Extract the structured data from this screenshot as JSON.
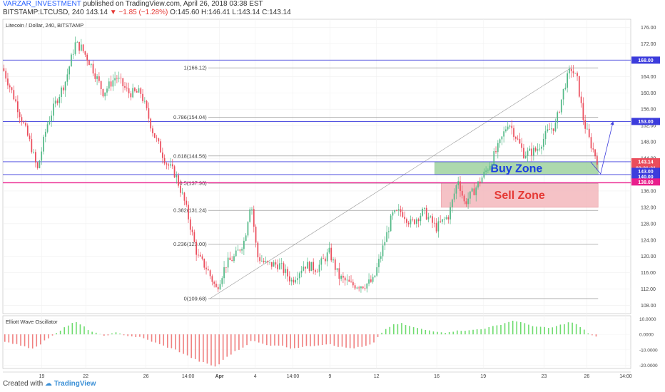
{
  "header": {
    "author": "VARZAR_INVESTMENT",
    "published_text": "published on TradingView.com, April 26, 2018 03:38 EST",
    "symbol_line": "BITSTAMP:LTCUSD, 240",
    "last": "143.14",
    "change": "−1.85 (−1.28%)",
    "o": "O:145.60",
    "h": "H:146.41",
    "l": "L:143.14",
    "c": "C:143.14"
  },
  "pane_title": "Litecoin / Dollar, 240, BITSTAMP",
  "osc_title": "Elliott Wave Oscillator",
  "footer": {
    "created_with": "Created with",
    "brand": "TradingView"
  },
  "colors": {
    "up": "#53b987",
    "down": "#eb4d5c",
    "hline": "#3c3cdc",
    "magenta": "#e91e8c",
    "buy": "#80c080",
    "sell": "#f0a0a6",
    "fib": "#888888"
  },
  "chart_data": {
    "type": "candlestick",
    "ylim": [
      106,
      178
    ],
    "y_ticks": [
      "176.00",
      "172.00",
      "168.00",
      "164.00",
      "160.00",
      "156.00",
      "152.00",
      "148.00",
      "144.00",
      "140.00",
      "136.00",
      "132.00",
      "128.00",
      "124.00",
      "120.00",
      "116.00",
      "112.00",
      "108.00"
    ],
    "x_ticks": [
      "19",
      "22",
      "26",
      "14:00",
      "Apr",
      "4",
      "14:00",
      "9",
      "12",
      "16",
      "19",
      "23",
      "26",
      "14:00"
    ],
    "osc_ylim": [
      -22,
      12
    ],
    "osc_ticks": [
      "10.0000",
      "0.0000",
      "-10.0000",
      "-20.0000"
    ],
    "price_labels": [
      {
        "label": "168.00",
        "value": 168,
        "color": "#3c3cdc"
      },
      {
        "label": "153.00",
        "value": 153,
        "color": "#3c3cdc"
      },
      {
        "label": "143.14",
        "value": 143.14,
        "color": "#eb4d5c"
      },
      {
        "label": "03:21:31",
        "value": 141.6,
        "color": "#eb4d5c"
      },
      {
        "label": "143.00",
        "value": 140.8,
        "color": "#3c3cdc"
      },
      {
        "label": "140.00",
        "value": 139.5,
        "color": "#3c3cdc"
      },
      {
        "label": "138.00",
        "value": 138.2,
        "color": "#e91e8c"
      }
    ],
    "hlines": [
      {
        "value": 168,
        "color": "#3c3cdc"
      },
      {
        "value": 153,
        "color": "#3c3cdc"
      },
      {
        "value": 143.14,
        "color": "#3c3cdc"
      },
      {
        "value": 140,
        "color": "#3c3cdc"
      },
      {
        "value": 138,
        "color": "#e91e8c"
      }
    ],
    "fib_levels": [
      {
        "label": "1(166.12)",
        "value": 166.12
      },
      {
        "label": "0.786(154.04)",
        "value": 154.04
      },
      {
        "label": "0.618(144.56)",
        "value": 144.56
      },
      {
        "label": "0.5(137.90)",
        "value": 137.9
      },
      {
        "label": "0.382(131.24)",
        "value": 131.24
      },
      {
        "label": "0.236(123.00)",
        "value": 123.0
      },
      {
        "label": "0(109.68)",
        "value": 109.68
      }
    ],
    "zones": [
      {
        "label": "Buy Zone",
        "top": 143.14,
        "bottom": 140,
        "x0": 0.688,
        "x1": 0.948,
        "fill": "#9fd39f",
        "stroke": "#6cb36c",
        "text": "#1a3ee0"
      },
      {
        "label": "Sell Zone",
        "top": 138,
        "bottom": 132,
        "x0": 0.698,
        "x1": 0.948,
        "fill": "#f4b8bd",
        "stroke": "#e88a92",
        "text": "#e53935"
      }
    ],
    "anchors": [
      {
        "xf": 0.0,
        "p": 166,
        "v": -5
      },
      {
        "xf": 0.02,
        "p": 158,
        "v": -6
      },
      {
        "xf": 0.045,
        "p": 147,
        "v": -9
      },
      {
        "xf": 0.055,
        "p": 141,
        "v": -8
      },
      {
        "xf": 0.07,
        "p": 152,
        "v": -3
      },
      {
        "xf": 0.085,
        "p": 158,
        "v": 1
      },
      {
        "xf": 0.1,
        "p": 163,
        "v": 5
      },
      {
        "xf": 0.115,
        "p": 172,
        "v": 8
      },
      {
        "xf": 0.125,
        "p": 171,
        "v": 6
      },
      {
        "xf": 0.14,
        "p": 167,
        "v": 2
      },
      {
        "xf": 0.16,
        "p": 160,
        "v": -1
      },
      {
        "xf": 0.18,
        "p": 164,
        "v": 1
      },
      {
        "xf": 0.2,
        "p": 160,
        "v": -1
      },
      {
        "xf": 0.22,
        "p": 160,
        "v": -2
      },
      {
        "xf": 0.24,
        "p": 150,
        "v": -5
      },
      {
        "xf": 0.26,
        "p": 143,
        "v": -8
      },
      {
        "xf": 0.275,
        "p": 140,
        "v": -10
      },
      {
        "xf": 0.29,
        "p": 133,
        "v": -13
      },
      {
        "xf": 0.31,
        "p": 120,
        "v": -17
      },
      {
        "xf": 0.325,
        "p": 117,
        "v": -19
      },
      {
        "xf": 0.34,
        "p": 112,
        "v": -21
      },
      {
        "xf": 0.355,
        "p": 118,
        "v": -15
      },
      {
        "xf": 0.37,
        "p": 120,
        "v": -11
      },
      {
        "xf": 0.385,
        "p": 124,
        "v": -8
      },
      {
        "xf": 0.395,
        "p": 134,
        "v": -4
      },
      {
        "xf": 0.405,
        "p": 120,
        "v": -5
      },
      {
        "xf": 0.42,
        "p": 118,
        "v": -7
      },
      {
        "xf": 0.44,
        "p": 118,
        "v": -7
      },
      {
        "xf": 0.46,
        "p": 114,
        "v": -9
      },
      {
        "xf": 0.48,
        "p": 118,
        "v": -8
      },
      {
        "xf": 0.5,
        "p": 117,
        "v": -7
      },
      {
        "xf": 0.52,
        "p": 121,
        "v": -6
      },
      {
        "xf": 0.535,
        "p": 115,
        "v": -8
      },
      {
        "xf": 0.555,
        "p": 113,
        "v": -9
      },
      {
        "xf": 0.575,
        "p": 113,
        "v": -8
      },
      {
        "xf": 0.59,
        "p": 114,
        "v": -6
      },
      {
        "xf": 0.605,
        "p": 122,
        "v": 2
      },
      {
        "xf": 0.62,
        "p": 130,
        "v": 6
      },
      {
        "xf": 0.635,
        "p": 131,
        "v": 7
      },
      {
        "xf": 0.65,
        "p": 128,
        "v": 5
      },
      {
        "xf": 0.67,
        "p": 131,
        "v": 3
      },
      {
        "xf": 0.69,
        "p": 127,
        "v": 2
      },
      {
        "xf": 0.71,
        "p": 130,
        "v": 1
      },
      {
        "xf": 0.725,
        "p": 139,
        "v": 3
      },
      {
        "xf": 0.735,
        "p": 133,
        "v": 2
      },
      {
        "xf": 0.75,
        "p": 136,
        "v": 3
      },
      {
        "xf": 0.77,
        "p": 141,
        "v": 4
      },
      {
        "xf": 0.79,
        "p": 147,
        "v": 6
      },
      {
        "xf": 0.805,
        "p": 153,
        "v": 8
      },
      {
        "xf": 0.815,
        "p": 150,
        "v": 9
      },
      {
        "xf": 0.83,
        "p": 145,
        "v": 7
      },
      {
        "xf": 0.85,
        "p": 146,
        "v": 5
      },
      {
        "xf": 0.87,
        "p": 151,
        "v": 4
      },
      {
        "xf": 0.88,
        "p": 152,
        "v": 5
      },
      {
        "xf": 0.895,
        "p": 162,
        "v": 7
      },
      {
        "xf": 0.905,
        "p": 166,
        "v": 8
      },
      {
        "xf": 0.915,
        "p": 163,
        "v": 6
      },
      {
        "xf": 0.925,
        "p": 153,
        "v": 3
      },
      {
        "xf": 0.935,
        "p": 148,
        "v": 0
      },
      {
        "xf": 0.948,
        "p": 143,
        "v": -2
      }
    ]
  }
}
